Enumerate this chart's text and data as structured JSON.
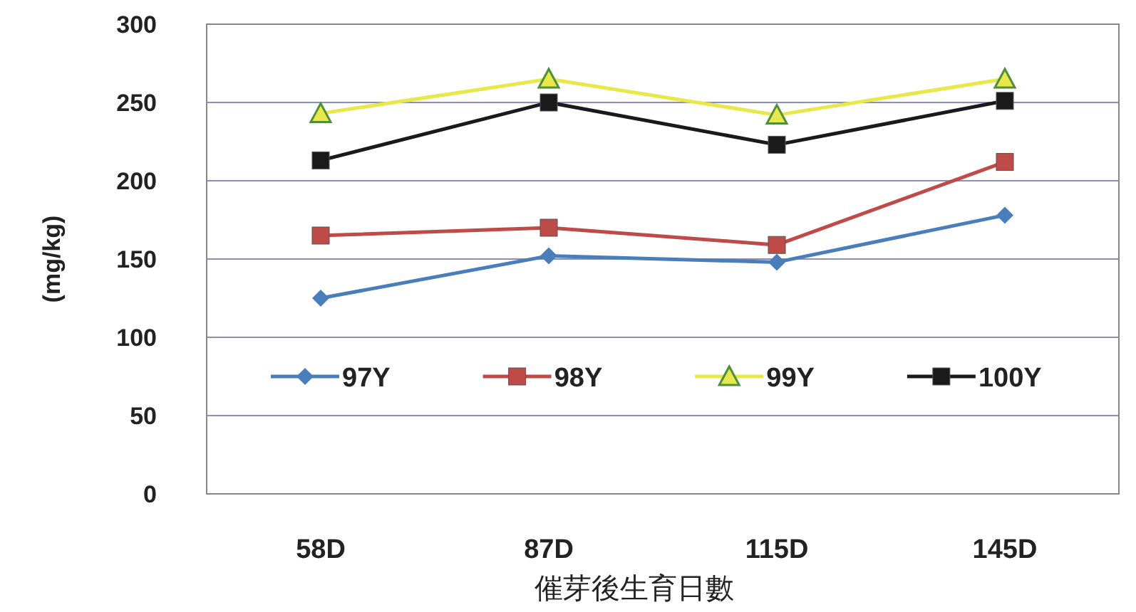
{
  "chart_data": {
    "type": "line",
    "xlabel": "催芽後生育日數",
    "ylabel": "(mg/kg)",
    "categories": [
      "58D",
      "87D",
      "115D",
      "145D"
    ],
    "series": [
      {
        "name": "97Y",
        "color": "#4a7ebb",
        "marker": "diamond",
        "values": [
          125,
          152,
          148,
          178
        ]
      },
      {
        "name": "98Y",
        "color": "#be4b48",
        "marker": "square",
        "values": [
          165,
          170,
          159,
          212
        ]
      },
      {
        "name": "99Y",
        "color": "#e8e84a",
        "marker": "triangle",
        "values": [
          243,
          265,
          242,
          265
        ]
      },
      {
        "name": "100Y",
        "color": "#1a1a1a",
        "marker": "square",
        "values": [
          213,
          250,
          223,
          251
        ]
      }
    ],
    "ylim": [
      0,
      300
    ],
    "yticks": [
      0,
      50,
      100,
      150,
      200,
      250,
      300
    ],
    "grid": "y",
    "legend": "center"
  }
}
